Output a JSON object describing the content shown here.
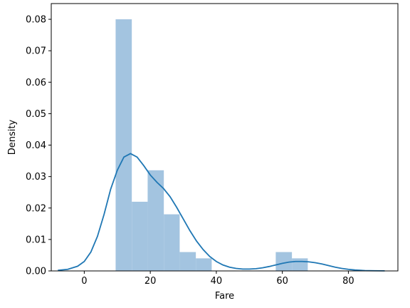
{
  "chart_data": {
    "type": "histogram",
    "title": "",
    "xlabel": "Fare",
    "ylabel": "Density",
    "xlim": [
      -10,
      95
    ],
    "ylim": [
      0,
      0.085
    ],
    "xticks": [
      0,
      20,
      40,
      60,
      80
    ],
    "xtick_labels": [
      "0",
      "20",
      "40",
      "60",
      "80"
    ],
    "yticks": [
      0.0,
      0.01,
      0.02,
      0.03,
      0.04,
      0.05,
      0.06,
      0.07,
      0.08
    ],
    "ytick_labels": [
      "0.00",
      "0.01",
      "0.02",
      "0.03",
      "0.04",
      "0.05",
      "0.06",
      "0.07",
      "0.08"
    ],
    "bins": [
      {
        "x0": 9.5,
        "x1": 14.4,
        "density": 0.08
      },
      {
        "x0": 14.4,
        "x1": 19.2,
        "density": 0.022
      },
      {
        "x0": 19.2,
        "x1": 24.1,
        "density": 0.032
      },
      {
        "x0": 24.1,
        "x1": 28.9,
        "density": 0.018
      },
      {
        "x0": 28.9,
        "x1": 33.8,
        "density": 0.006
      },
      {
        "x0": 33.8,
        "x1": 38.6,
        "density": 0.004
      },
      {
        "x0": 38.6,
        "x1": 43.5,
        "density": 0.0
      },
      {
        "x0": 43.5,
        "x1": 48.3,
        "density": 0.0
      },
      {
        "x0": 48.3,
        "x1": 53.2,
        "density": 0.0
      },
      {
        "x0": 53.2,
        "x1": 58.0,
        "density": 0.0
      },
      {
        "x0": 58.0,
        "x1": 62.9,
        "density": 0.006
      },
      {
        "x0": 62.9,
        "x1": 67.7,
        "density": 0.004
      }
    ],
    "kde": {
      "x": [
        -8,
        -5,
        -2,
        0,
        2,
        4,
        6,
        8,
        10,
        12,
        14,
        16,
        18,
        20,
        22,
        24,
        26,
        28,
        30,
        32,
        34,
        36,
        38,
        40,
        42,
        44,
        46,
        48,
        50,
        52,
        54,
        56,
        58,
        60,
        62,
        64,
        66,
        68,
        70,
        72,
        74,
        76,
        78,
        80,
        82,
        85,
        88,
        91
      ],
      "y": [
        0.0002,
        0.0005,
        0.0015,
        0.003,
        0.006,
        0.011,
        0.018,
        0.026,
        0.032,
        0.0362,
        0.0373,
        0.0362,
        0.0335,
        0.0305,
        0.0282,
        0.0262,
        0.0236,
        0.0202,
        0.0165,
        0.0128,
        0.0095,
        0.0068,
        0.0046,
        0.003,
        0.0019,
        0.0012,
        0.0008,
        0.0006,
        0.0006,
        0.0007,
        0.001,
        0.0014,
        0.0019,
        0.0024,
        0.0028,
        0.003,
        0.003,
        0.0029,
        0.0026,
        0.0022,
        0.0017,
        0.0012,
        0.0008,
        0.0005,
        0.0003,
        0.0001,
        5e-05,
        2e-05
      ]
    },
    "colors": {
      "bars": "#a3c4e0",
      "kde_line": "#1f77b4",
      "axes": "#000000"
    },
    "grid": false,
    "legend": "none"
  }
}
